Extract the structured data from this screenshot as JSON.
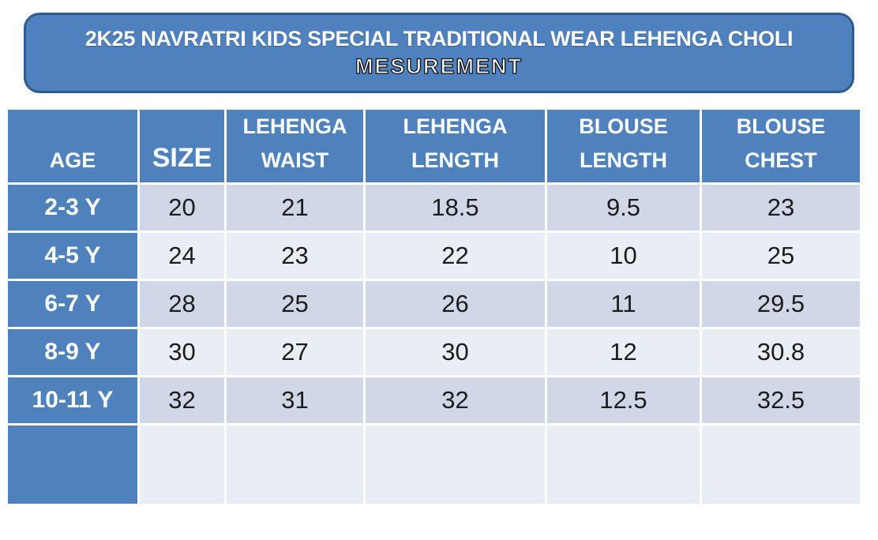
{
  "banner": {
    "title": "2K25 NAVRATRI KIDS SPECIAL TRADITIONAL WEAR LEHENGA CHOLI",
    "subtitle": "MESUREMENT",
    "bg_color": "#4E81BD",
    "border_color": "#2E5A8C",
    "text_color": "#FFFFFF"
  },
  "table": {
    "columns": [
      "AGE",
      "SIZE",
      "LEHENGA WAIST",
      "LEHENGA LENGTH",
      "BLOUSE LENGTH",
      "BLOUSE CHEST"
    ],
    "rows": [
      [
        "2-3 Y",
        "20",
        "21",
        "18.5",
        "9.5",
        "23"
      ],
      [
        "4-5 Y",
        "24",
        "23",
        "22",
        "10",
        "25"
      ],
      [
        "6-7 Y",
        "28",
        "25",
        "26",
        "11",
        "29.5"
      ],
      [
        "8-9 Y",
        "30",
        "27",
        "30",
        "12",
        "30.8"
      ],
      [
        "10-11 Y",
        "32",
        "31",
        "32",
        "12.5",
        "32.5"
      ]
    ],
    "colors": {
      "header_bg": "#4F81BD",
      "age_column_bg": "#4F81BD",
      "band_dark": "#D0D8E8",
      "band_light": "#E9EDF4",
      "value_text": "#1C1C1C",
      "header_text": "#FFFFFF"
    }
  }
}
